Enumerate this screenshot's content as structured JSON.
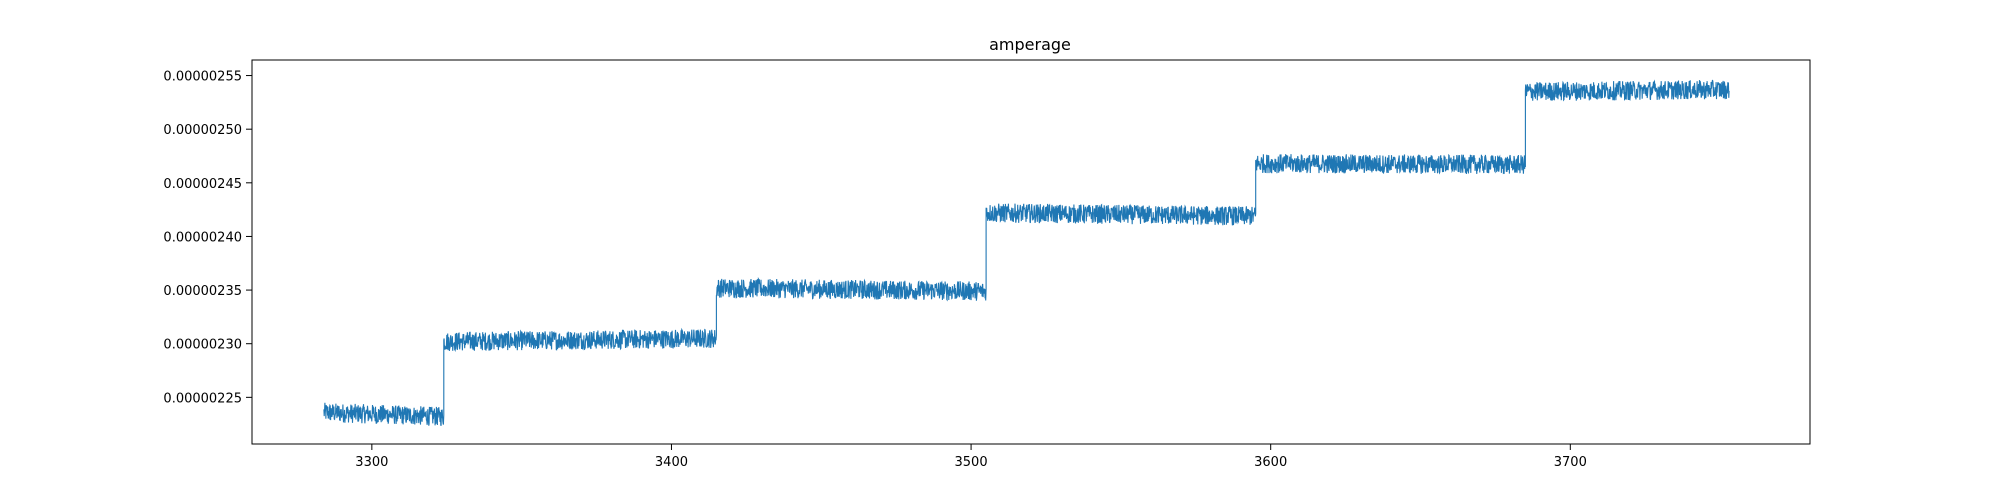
{
  "chart_data": {
    "type": "line",
    "title": "amperage",
    "xlabel": "",
    "ylabel": "",
    "xlim": [
      3260,
      3780
    ],
    "ylim": [
      2.2065e-06,
      2.5645e-06
    ],
    "x_ticks": [
      3300,
      3400,
      3500,
      3600,
      3700
    ],
    "y_ticks": [
      2.25e-06,
      2.3e-06,
      2.35e-06,
      2.4e-06,
      2.45e-06,
      2.5e-06,
      2.55e-06
    ],
    "x_tick_labels": [
      "3300",
      "3400",
      "3500",
      "3600",
      "3700"
    ],
    "y_tick_labels": [
      "0.00000225",
      "0.00000230",
      "0.00000235",
      "0.00000240",
      "0.00000245",
      "0.00000250",
      "0.00000255"
    ],
    "grid": false,
    "color": "#1f77b4",
    "noise_amplitude": 9e-09,
    "series": [
      {
        "segments": [
          {
            "x": [
              3284,
              3324
            ],
            "y": [
              2.236e-06,
              2.232e-06
            ]
          },
          {
            "x": [
              3324,
              3415
            ],
            "y": [
              2.302e-06,
              2.305e-06
            ]
          },
          {
            "x": [
              3415,
              3505
            ],
            "y": [
              2.352e-06,
              2.349e-06
            ]
          },
          {
            "x": [
              3505,
              3595
            ],
            "y": [
              2.422e-06,
              2.419e-06
            ]
          },
          {
            "x": [
              3595,
              3685
            ],
            "y": [
              2.468e-06,
              2.467e-06
            ]
          },
          {
            "x": [
              3685,
              3753
            ],
            "y": [
              2.535e-06,
              2.537e-06
            ]
          }
        ]
      }
    ]
  }
}
